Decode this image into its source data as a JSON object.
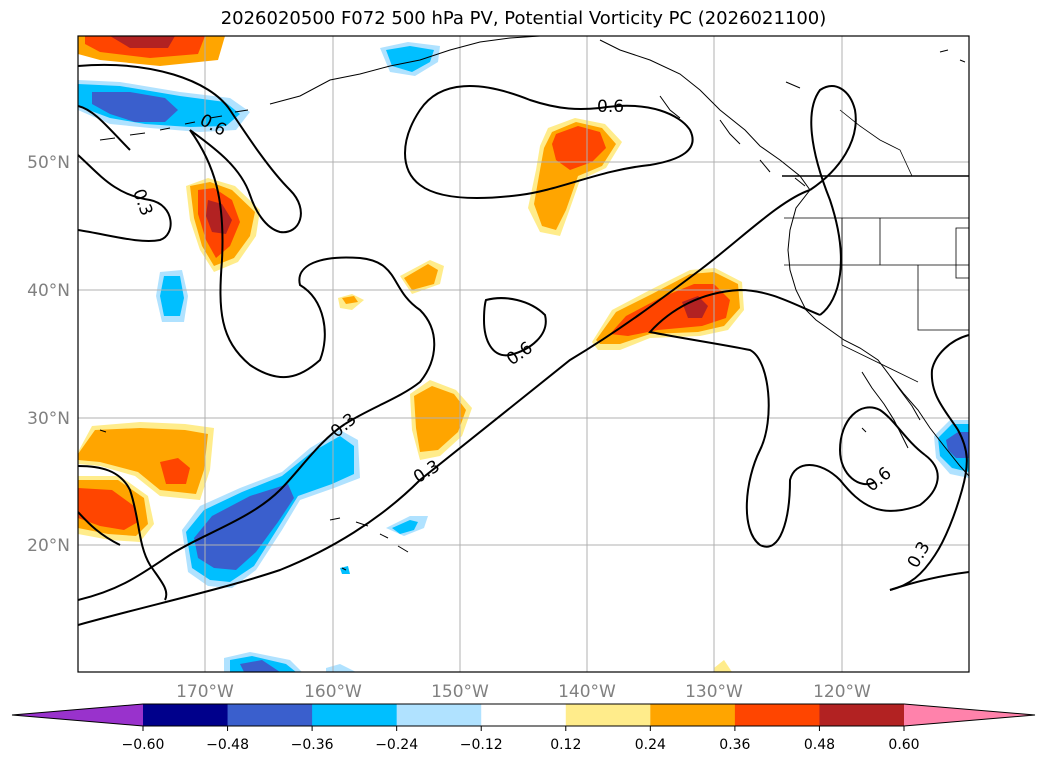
{
  "title": "2026020500 F072 500 hPa PV, Potential Vorticity PC (2026021100)",
  "map": {
    "projection": "Mercator",
    "lon_range": [
      -180,
      -110
    ],
    "lat_range": [
      10,
      60
    ],
    "gridlines": true,
    "lon_ticks": [
      {
        "lon": -170,
        "label": "170°W"
      },
      {
        "lon": -160,
        "label": "160°W"
      },
      {
        "lon": -150,
        "label": "150°W"
      },
      {
        "lon": -140,
        "label": "140°W"
      },
      {
        "lon": -130,
        "label": "130°W"
      },
      {
        "lon": -120,
        "label": "120°W"
      }
    ],
    "lat_ticks": [
      {
        "lat": 20,
        "label": "20°N"
      },
      {
        "lat": 30,
        "label": "30°N"
      },
      {
        "lat": 40,
        "label": "40°N"
      },
      {
        "lat": 50,
        "label": "50°N"
      }
    ],
    "contour_labels": [
      "0.6",
      "0.3",
      "0.6",
      "0.3",
      "0.6",
      "0.3",
      "0.6",
      "0.3"
    ]
  },
  "colorbar": {
    "orientation": "horizontal",
    "placement": "bottom",
    "extend": "both",
    "boundaries": [
      -0.6,
      -0.48,
      -0.36,
      -0.24,
      -0.12,
      0.12,
      0.24,
      0.36,
      0.48,
      0.6
    ],
    "colors": [
      "#9932cc",
      "#00008b",
      "#3a5fcd",
      "#00bfff",
      "#b0e2ff",
      "#ffffff",
      "#ffec8b",
      "#ffa500",
      "#ff4500",
      "#b22222",
      "#ff82ab"
    ],
    "tick_labels": [
      "−0.60",
      "−0.48",
      "−0.36",
      "−0.24",
      "−0.12",
      "0.12",
      "0.24",
      "0.36",
      "0.48",
      "0.60"
    ]
  }
}
